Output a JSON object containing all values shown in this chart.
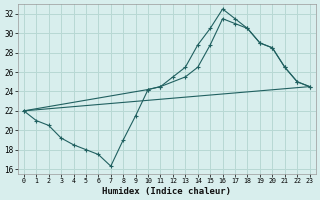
{
  "xlabel": "Humidex (Indice chaleur)",
  "bg_color": "#d8eeed",
  "grid_color": "#b8d8d4",
  "line_color": "#206060",
  "xlim": [
    -0.5,
    23.5
  ],
  "ylim": [
    15.5,
    33
  ],
  "xticks": [
    0,
    1,
    2,
    3,
    4,
    5,
    6,
    7,
    8,
    9,
    10,
    11,
    12,
    13,
    14,
    15,
    16,
    17,
    18,
    19,
    20,
    21,
    22,
    23
  ],
  "yticks": [
    16,
    18,
    20,
    22,
    24,
    26,
    28,
    30,
    32
  ],
  "line1_x": [
    0,
    1,
    2,
    3,
    4,
    5,
    6,
    7,
    8,
    9,
    10,
    11,
    12,
    13,
    14,
    15,
    16,
    17,
    18,
    19,
    20,
    21,
    22,
    23
  ],
  "line1_y": [
    22,
    21,
    20.5,
    19.2,
    18.5,
    18,
    17.5,
    16.3,
    19,
    21.5,
    24.2,
    24.5,
    25.5,
    26.5,
    28.8,
    30.5,
    32.5,
    31.5,
    30.5,
    29,
    28.5,
    26.5,
    25,
    24.5
  ],
  "line2_x": [
    0,
    10,
    11,
    13,
    14,
    15,
    16,
    17,
    18,
    19,
    20,
    21,
    22,
    23
  ],
  "line2_y": [
    22,
    24.2,
    24.5,
    25.5,
    26.5,
    28.8,
    31.5,
    31,
    30.5,
    29,
    28.5,
    26.5,
    25,
    24.5
  ],
  "line3_x": [
    0,
    23
  ],
  "line3_y": [
    22,
    24.5
  ]
}
